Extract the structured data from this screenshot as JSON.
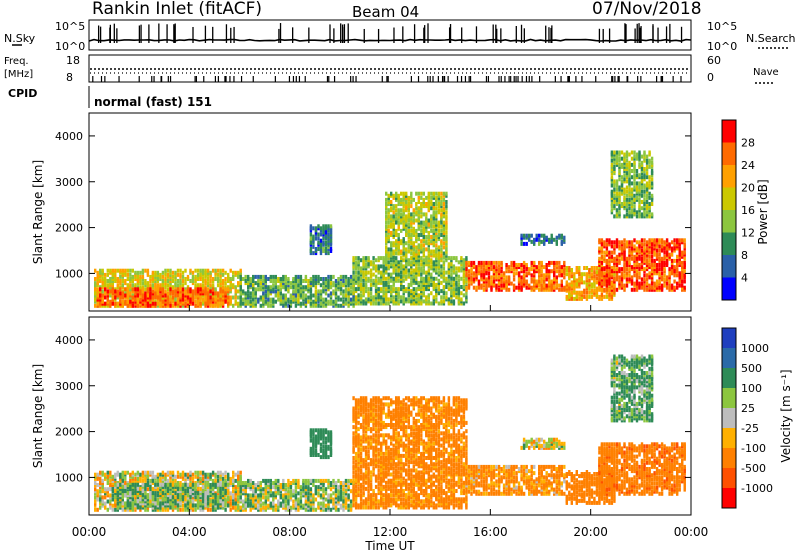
{
  "header": {
    "station": "Rankin Inlet (fitACF)",
    "beam": "Beam 04",
    "date": "07/Nov/2018"
  },
  "status_panels": {
    "nsky_label": "N.Sky",
    "nsearch_label": "N.Search",
    "freq_label": "Freq.",
    "freq_unit": "[MHz]",
    "nave_label": "Nave",
    "cpid_label": "CPID",
    "cpid_value": "normal (fast) 151",
    "left_ticks_top": [
      "10^5",
      "10^0"
    ],
    "right_ticks_top": [
      "10^5",
      "10^0"
    ],
    "left_ticks_freq": [
      "18",
      "8"
    ],
    "right_ticks_freq": [
      "60",
      "0"
    ]
  },
  "power_panel": {
    "ylabel": "Slant Range [km]",
    "colorbar_label": "Power [dB]",
    "colorbar_ticks": [
      "28",
      "24",
      "20",
      "16",
      "12",
      "8",
      "4"
    ],
    "colorbar_colors": [
      "#ff0000",
      "#ff6a00",
      "#ffa000",
      "#cbc800",
      "#8cc63f",
      "#2e8b57",
      "#2a60a8",
      "#0000ff"
    ]
  },
  "velocity_panel": {
    "ylabel": "Slant Range [km]",
    "colorbar_label": "Velocity [m s⁻¹]",
    "colorbar_ticks": [
      "1000",
      "500",
      "100",
      "25",
      "-25",
      "-100",
      "-500",
      "-1000"
    ],
    "colorbar_colors": [
      "#1f3fbf",
      "#2a6aa8",
      "#2e8b57",
      "#8cc63f",
      "#bdbdbd",
      "#ffb000",
      "#ff8000",
      "#ff5000",
      "#ff0000"
    ]
  },
  "axes": {
    "xlabel": "Time UT",
    "xticks": [
      "00:00",
      "04:00",
      "08:00",
      "12:00",
      "16:00",
      "20:00",
      "00:00"
    ],
    "yticks": [
      "1000",
      "2000",
      "3000",
      "4000"
    ]
  },
  "chart_data": {
    "type": "heatmap",
    "x_unit": "hours UT",
    "xlim": [
      0,
      24
    ],
    "ylim": [
      180,
      4500
    ],
    "power_clusters": [
      {
        "t0": 0.2,
        "t1": 6.0,
        "r0": 250,
        "r1": 1050,
        "dB": 18
      },
      {
        "t0": 0.3,
        "t1": 5.5,
        "r0": 250,
        "r1": 650,
        "dB": 26
      },
      {
        "t0": 6.0,
        "t1": 10.5,
        "r0": 250,
        "r1": 900,
        "dB": 12
      },
      {
        "t0": 8.8,
        "t1": 9.6,
        "r0": 1400,
        "r1": 2000,
        "dB": 8
      },
      {
        "t0": 10.5,
        "t1": 15.0,
        "r0": 300,
        "r1": 1300,
        "dB": 14
      },
      {
        "t0": 11.8,
        "t1": 14.2,
        "r0": 1300,
        "r1": 2700,
        "dB": 16
      },
      {
        "t0": 15.0,
        "t1": 19.0,
        "r0": 600,
        "r1": 1200,
        "dB": 26
      },
      {
        "t0": 17.2,
        "t1": 19.0,
        "r0": 1600,
        "r1": 1800,
        "dB": 8
      },
      {
        "t0": 19.0,
        "t1": 21.0,
        "r0": 400,
        "r1": 1100,
        "dB": 22
      },
      {
        "t0": 20.3,
        "t1": 23.8,
        "r0": 600,
        "r1": 1700,
        "dB": 27
      },
      {
        "t0": 20.8,
        "t1": 22.5,
        "r0": 2200,
        "r1": 3600,
        "dB": 14
      }
    ],
    "velocity_clusters": [
      {
        "t0": 0.2,
        "t1": 6.0,
        "r0": 250,
        "r1": 1100,
        "vel": 0
      },
      {
        "t0": 1.0,
        "t1": 5.5,
        "r0": 300,
        "r1": 800,
        "vel": 100
      },
      {
        "t0": 6.0,
        "t1": 10.5,
        "r0": 250,
        "r1": 900,
        "vel": 50
      },
      {
        "t0": 8.8,
        "t1": 9.6,
        "r0": 1400,
        "r1": 2000,
        "vel": 300
      },
      {
        "t0": 10.5,
        "t1": 15.0,
        "r0": 300,
        "r1": 2700,
        "vel": -200
      },
      {
        "t0": 15.0,
        "t1": 19.0,
        "r0": 600,
        "r1": 1200,
        "vel": -150
      },
      {
        "t0": 17.2,
        "t1": 19.0,
        "r0": 1600,
        "r1": 1800,
        "vel": 0
      },
      {
        "t0": 19.0,
        "t1": 21.0,
        "r0": 400,
        "r1": 1100,
        "vel": -300
      },
      {
        "t0": 20.3,
        "t1": 23.8,
        "r0": 600,
        "r1": 1700,
        "vel": -400
      },
      {
        "t0": 20.8,
        "t1": 22.5,
        "r0": 2200,
        "r1": 3600,
        "vel": 120
      }
    ]
  }
}
